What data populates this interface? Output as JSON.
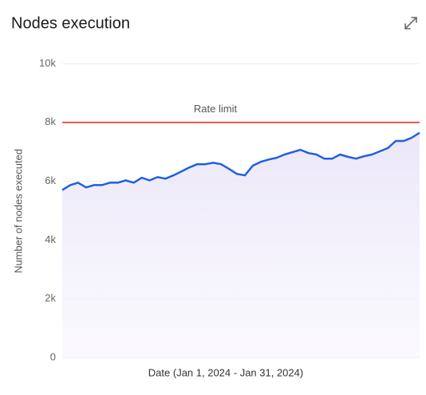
{
  "chart_data": {
    "type": "line",
    "title": "Nodes execution",
    "xlabel": "Date (Jan 1, 2024 - Jan 31, 2024)",
    "ylabel": "Number of nodes executed",
    "ylim": [
      0,
      10000
    ],
    "yticks": [
      0,
      {
        "value": 2000,
        "label": "2k"
      },
      {
        "value": 4000,
        "label": "4k"
      },
      {
        "value": 6000,
        "label": "6k"
      },
      {
        "value": 8000,
        "label": "8k"
      },
      {
        "value": 10000,
        "label": "10k"
      }
    ],
    "grid": true,
    "series": [
      {
        "name": "Nodes executed",
        "color": "#1f5fe0",
        "values": [
          5700,
          5870,
          5950,
          5790,
          5870,
          5870,
          5950,
          5950,
          6030,
          5950,
          6120,
          6030,
          6140,
          6090,
          6200,
          6330,
          6470,
          6580,
          6580,
          6630,
          6580,
          6420,
          6250,
          6200,
          6530,
          6660,
          6740,
          6800,
          6910,
          6990,
          7070,
          6960,
          6910,
          6770,
          6770,
          6910,
          6830,
          6770,
          6850,
          6910,
          7020,
          7130,
          7370,
          7370,
          7480,
          7650
        ]
      }
    ],
    "threshold": {
      "value": 8000,
      "label": "Rate limit",
      "color": "#e0564a"
    }
  }
}
